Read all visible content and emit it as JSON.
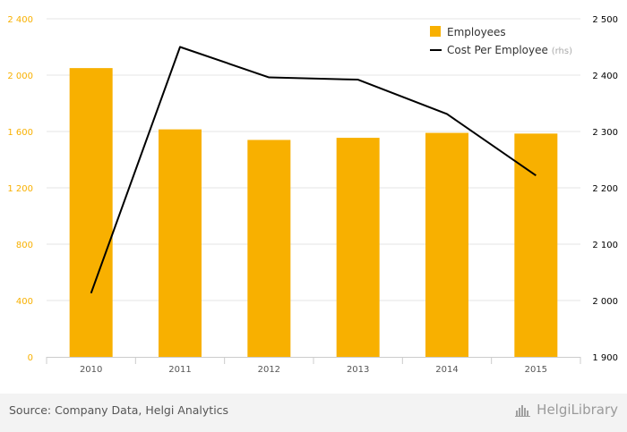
{
  "chart_data": {
    "type": "bar+line",
    "categories": [
      "2010",
      "2011",
      "2012",
      "2013",
      "2014",
      "2015"
    ],
    "series": [
      {
        "name": "Employees",
        "type": "bar",
        "axis": "left",
        "color": "#f8b000",
        "values": [
          2050,
          1615,
          1540,
          1555,
          1590,
          1585
        ]
      },
      {
        "name": "Cost Per Employee",
        "name_suffix": "(rhs)",
        "type": "line",
        "axis": "right",
        "color": "#000000",
        "values": [
          2013,
          2450,
          2396,
          2392,
          2331,
          2222
        ]
      }
    ],
    "left_axis": {
      "min": 0,
      "max": 2400,
      "ticks": [
        0,
        400,
        800,
        1200,
        1600,
        2000,
        2400
      ],
      "tick_labels": [
        "0",
        "400",
        "800",
        "1 200",
        "1 600",
        "2 000",
        "2 400"
      ],
      "label_color": "#f8b000"
    },
    "right_axis": {
      "min": 1900,
      "max": 2500,
      "ticks": [
        1900,
        2000,
        2100,
        2200,
        2300,
        2400,
        2500
      ],
      "tick_labels": [
        "1 900",
        "2 000",
        "2 100",
        "2 200",
        "2 300",
        "2 400",
        "2 500"
      ],
      "label_color": "#000000"
    },
    "grid": true,
    "legend_position": "top-right"
  },
  "footer": {
    "source": "Source: Company Data, Helgi Analytics",
    "brand_part1": "Helgi",
    "brand_part2": "Library"
  }
}
